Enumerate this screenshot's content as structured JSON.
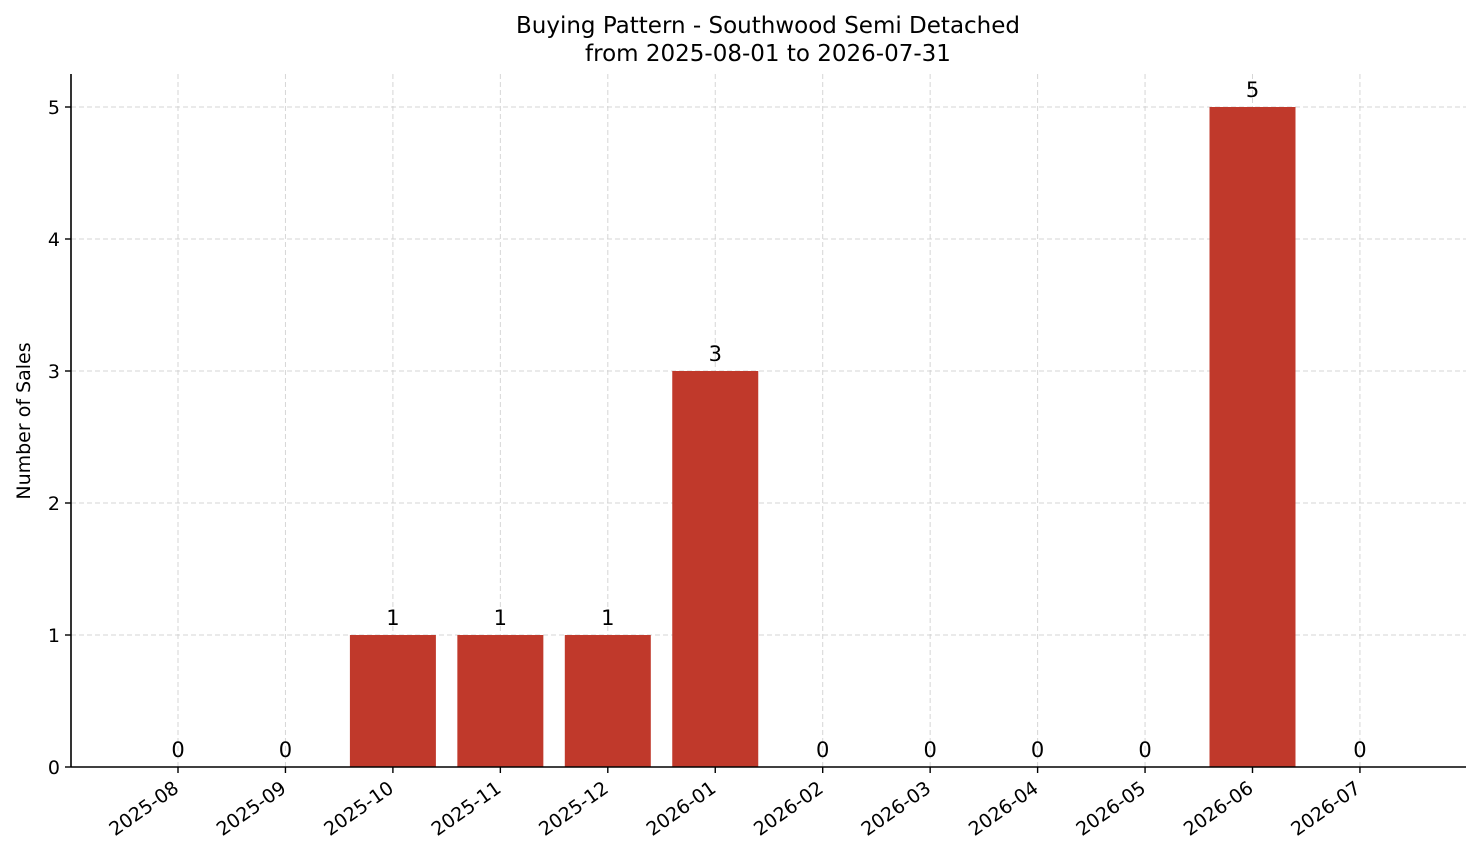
{
  "chart_data": {
    "type": "bar",
    "title": "Buying Pattern - Southwood Semi Detached",
    "subtitle": "from 2025-08-01 to 2026-07-31",
    "xlabel": "",
    "ylabel": "Number of Sales",
    "categories": [
      "2025-08",
      "2025-09",
      "2025-10",
      "2025-11",
      "2025-12",
      "2026-01",
      "2026-02",
      "2026-03",
      "2026-04",
      "2026-05",
      "2026-06",
      "2026-07"
    ],
    "values": [
      0,
      0,
      1,
      1,
      1,
      3,
      0,
      0,
      0,
      0,
      5,
      0
    ],
    "data_labels": [
      "0",
      "0",
      "1",
      "1",
      "1",
      "3",
      "0",
      "0",
      "0",
      "0",
      "5",
      "0"
    ],
    "yticks": [
      0,
      1,
      2,
      3,
      4,
      5
    ],
    "ylim": [
      0,
      5.25
    ],
    "grid": true,
    "bar_color": "#c0392b"
  }
}
